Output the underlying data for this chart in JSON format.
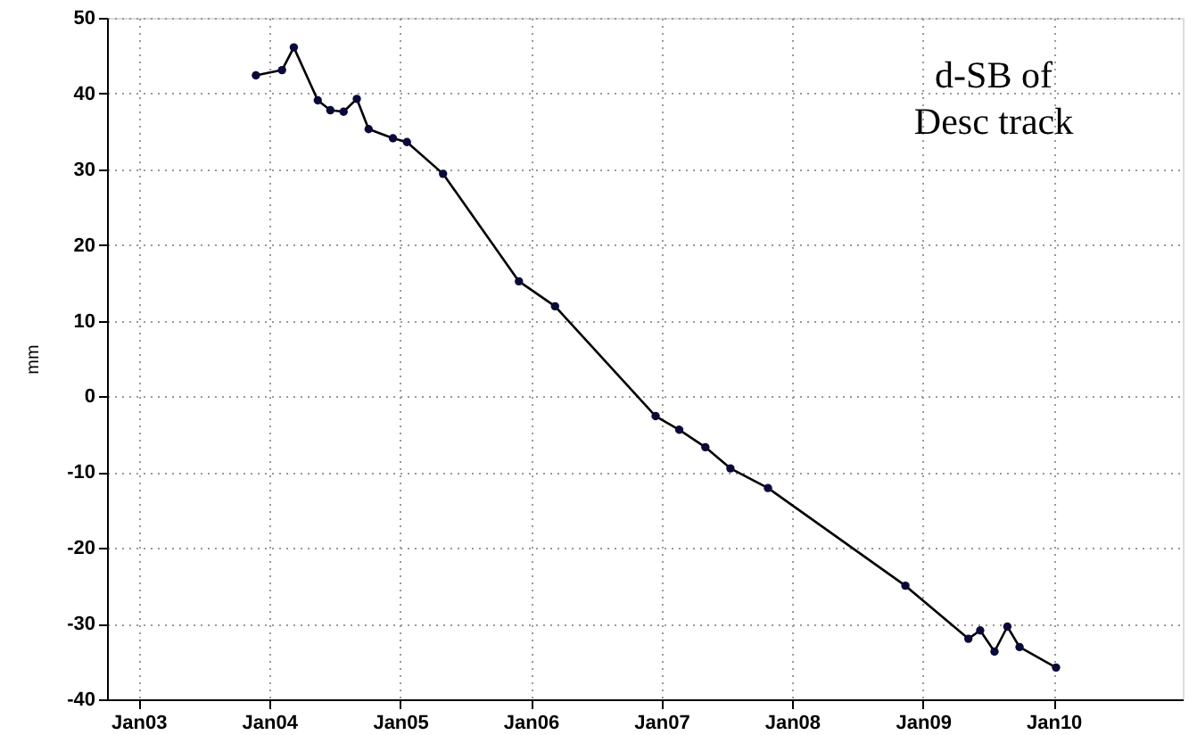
{
  "chart_data": {
    "type": "line",
    "ylabel": "mm",
    "annotations": [
      "d-SB of\nDesc track"
    ],
    "x": [
      "2003-11-25",
      "2004-02-06",
      "2004-03-10",
      "2004-05-16",
      "2004-06-20",
      "2004-07-27",
      "2004-09-02",
      "2004-10-05",
      "2004-12-12",
      "2005-01-20",
      "2005-05-01",
      "2005-11-29",
      "2006-03-10",
      "2006-12-16",
      "2007-02-20",
      "2007-05-04",
      "2007-07-13",
      "2007-10-26",
      "2008-11-13",
      "2009-05-08",
      "2009-06-10",
      "2009-07-20",
      "2009-08-25",
      "2009-09-28",
      "2010-01-08"
    ],
    "series": [
      {
        "color": "#000000",
        "values": [
          42.4,
          43.1,
          46.1,
          39.1,
          37.8,
          37.6,
          39.3,
          35.3,
          34.1,
          33.6,
          29.4,
          15.2,
          11.9,
          -2.6,
          -4.4,
          -6.7,
          -9.5,
          -12.1,
          -25.0,
          -32.0,
          -30.9,
          -33.7,
          -30.4,
          -33.1,
          -35.8
        ]
      }
    ],
    "xlim": [
      "2002-10-05",
      "2010-12-28"
    ],
    "xticks": [
      {
        "value": "2003-01-01",
        "label": "Jan03"
      },
      {
        "value": "2004-01-01",
        "label": "Jan04"
      },
      {
        "value": "2005-01-01",
        "label": "Jan05"
      },
      {
        "value": "2006-01-01",
        "label": "Jan06"
      },
      {
        "value": "2007-01-01",
        "label": "Jan07"
      },
      {
        "value": "2008-01-01",
        "label": "Jan08"
      },
      {
        "value": "2009-01-01",
        "label": "Jan09"
      },
      {
        "value": "2010-01-01",
        "label": "Jan10"
      }
    ],
    "ylim": [
      -40,
      50
    ],
    "yticks": [
      -40,
      -30,
      -20,
      -10,
      0,
      10,
      20,
      30,
      40,
      50
    ],
    "grid": true,
    "marker": "circle",
    "line_style": "solid"
  }
}
